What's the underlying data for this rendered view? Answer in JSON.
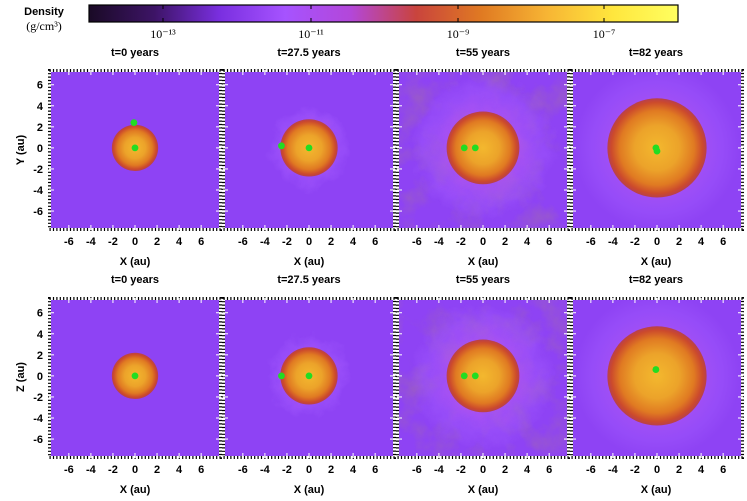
{
  "colorbar": {
    "label_line1": "Density",
    "label_line2": "(g/cm³)",
    "tick_labels": [
      "10⁻¹³",
      "10⁻¹¹",
      "10⁻⁹",
      "10⁻⁷"
    ],
    "stops": [
      "#1a0a26",
      "#3d1466",
      "#7a2fe0",
      "#a653ff",
      "#b347d9",
      "#c9443d",
      "#e07a22",
      "#f7b534",
      "#ffe63d",
      "#ffff60"
    ]
  },
  "panel_times": [
    "t=0 years",
    "t=27.5 years",
    "t=55 years",
    "t=82 years"
  ],
  "rows": [
    {
      "y_label": "Y (au)",
      "x_label": "X (au)"
    },
    {
      "y_label": "Z (au)",
      "x_label": "X (au)"
    }
  ],
  "axis_ticks": [
    "-6",
    "-4",
    "-2",
    "0",
    "2",
    "4",
    "6"
  ],
  "panels": [
    {
      "row": 0,
      "col": 0,
      "cloud": 0,
      "disk_r": 2.1,
      "points": [
        {
          "x": 0,
          "y": 0
        },
        {
          "x": -0.1,
          "y": 2.4
        }
      ]
    },
    {
      "row": 0,
      "col": 1,
      "cloud": 3.8,
      "disk_r": 2.6,
      "points": [
        {
          "x": 0,
          "y": 0
        },
        {
          "x": -2.5,
          "y": 0.2
        }
      ]
    },
    {
      "row": 0,
      "col": 2,
      "cloud": 6.6,
      "disk_r": 3.3,
      "points": [
        {
          "x": -0.7,
          "y": 0
        },
        {
          "x": -1.7,
          "y": 0
        }
      ]
    },
    {
      "row": 0,
      "col": 3,
      "cloud": 7.5,
      "disk_r": 4.5,
      "points": [
        {
          "x": -0.1,
          "y": 0
        },
        {
          "x": 0,
          "y": -0.3
        }
      ]
    },
    {
      "row": 1,
      "col": 0,
      "cloud": 0,
      "disk_r": 2.1,
      "points": [
        {
          "x": 0,
          "y": 0
        }
      ]
    },
    {
      "row": 1,
      "col": 1,
      "cloud": 3.8,
      "disk_r": 2.6,
      "points": [
        {
          "x": 0,
          "y": 0
        },
        {
          "x": -2.5,
          "y": 0
        }
      ]
    },
    {
      "row": 1,
      "col": 2,
      "cloud": 6.6,
      "disk_r": 3.3,
      "points": [
        {
          "x": -0.7,
          "y": 0
        },
        {
          "x": -1.7,
          "y": 0
        }
      ]
    },
    {
      "row": 1,
      "col": 3,
      "cloud": 7.5,
      "disk_r": 4.5,
      "points": [
        {
          "x": -0.1,
          "y": 0.6
        }
      ]
    }
  ],
  "colors": {
    "background_medium": "#8e43f4",
    "marker": "#22dd22",
    "frame": "#000000"
  }
}
